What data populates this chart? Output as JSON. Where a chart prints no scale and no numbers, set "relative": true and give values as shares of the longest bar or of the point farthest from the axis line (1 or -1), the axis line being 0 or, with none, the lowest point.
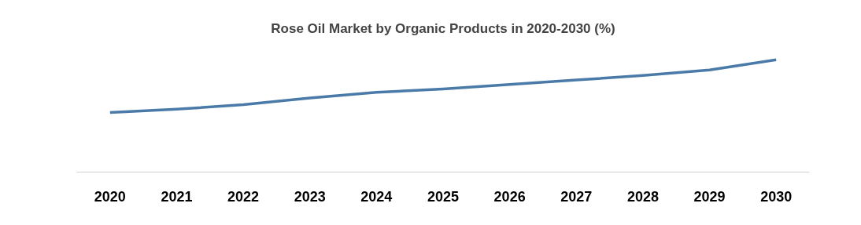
{
  "chart_data": {
    "type": "line",
    "title": "Rose Oil Market by Organic Products in 2020-2030 (%)",
    "categories": [
      "2020",
      "2021",
      "2022",
      "2023",
      "2024",
      "2025",
      "2026",
      "2027",
      "2028",
      "2029",
      "2030"
    ],
    "relative": true,
    "series": [
      {
        "color": "#4a7aa8",
        "values": [
          0.53,
          0.56,
          0.6,
          0.66,
          0.71,
          0.74,
          0.78,
          0.82,
          0.86,
          0.91,
          1
        ]
      }
    ]
  }
}
